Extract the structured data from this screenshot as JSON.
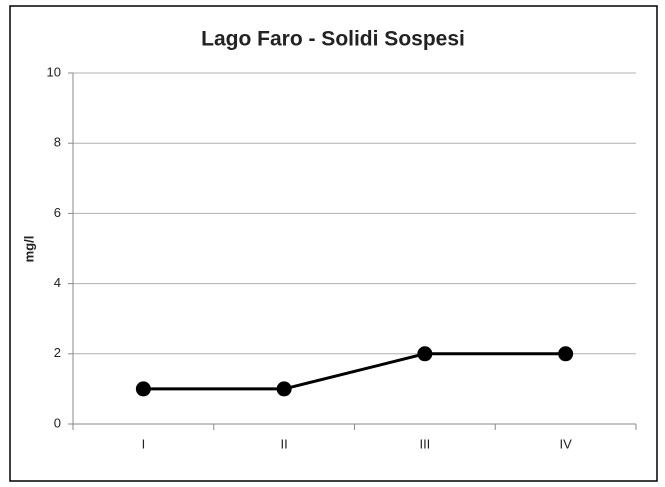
{
  "chart_data": {
    "type": "line",
    "title": "Lago Faro - Solidi Sospesi",
    "y_label": "mg/l",
    "categories": [
      "I",
      "II",
      "III",
      "IV"
    ],
    "values": [
      1,
      1,
      2,
      2
    ],
    "color": "#000000",
    "ylim": [
      0,
      10
    ],
    "yticks": [
      0,
      2,
      4,
      6,
      8,
      10
    ],
    "grid": true
  }
}
